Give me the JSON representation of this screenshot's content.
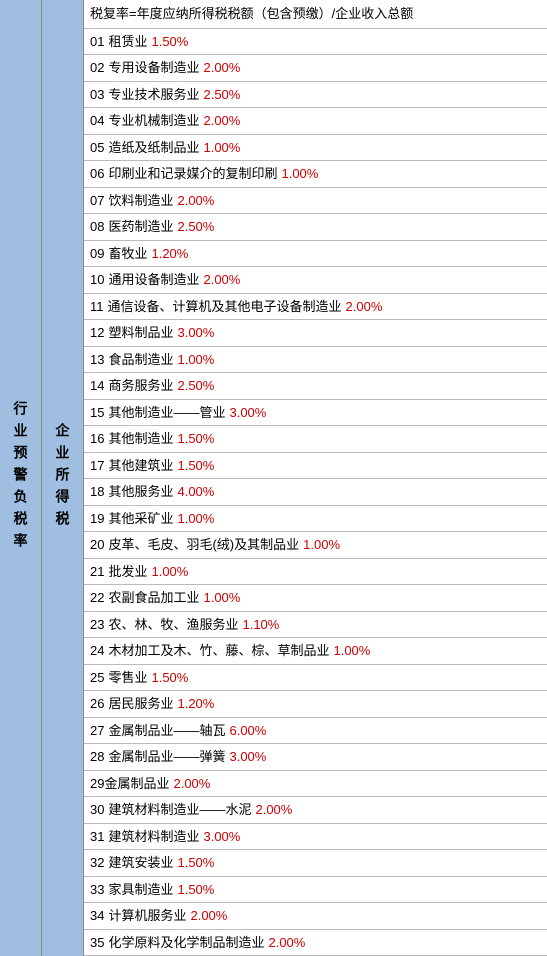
{
  "leftLabel": "行业预警负税率",
  "midLabel": "企业所得税",
  "headerText": "税复率=年度应纳所得税税额（包含预缴）/企业收入总额",
  "colors": {
    "sidebarBg": "#a0bfe0",
    "rateColor": "#d00000",
    "textColor": "#000000",
    "borderColor": "#bbbbbb"
  },
  "rows": [
    {
      "num": "01",
      "name": "租赁业",
      "rate": "1.50%"
    },
    {
      "num": "02",
      "name": "专用设备制造业",
      "rate": "2.00%"
    },
    {
      "num": "03",
      "name": "专业技术服务业",
      "rate": "2.50%"
    },
    {
      "num": "04",
      "name": "专业机械制造业",
      "rate": "2.00%"
    },
    {
      "num": "05",
      "name": "造纸及纸制品业",
      "rate": "1.00%"
    },
    {
      "num": "06",
      "name": "印刷业和记录媒介的复制印刷",
      "rate": "1.00%"
    },
    {
      "num": "07",
      "name": "饮料制造业",
      "rate": "2.00%"
    },
    {
      "num": "08",
      "name": "医药制造业",
      "rate": "2.50%"
    },
    {
      "num": "09",
      "name": "畜牧业",
      "rate": "1.20%"
    },
    {
      "num": "10",
      "name": "通用设备制造业",
      "rate": "2.00%"
    },
    {
      "num": "11",
      "name": "通信设备、计算机及其他电子设备制造业",
      "rate": "2.00%"
    },
    {
      "num": "12",
      "name": "塑料制品业",
      "rate": "3.00%"
    },
    {
      "num": "13",
      "name": "食品制造业",
      "rate": "1.00%"
    },
    {
      "num": "14",
      "name": "商务服务业",
      "rate": "2.50%"
    },
    {
      "num": "15",
      "name": "其他制造业——管业",
      "rate": "3.00%"
    },
    {
      "num": "16",
      "name": "其他制造业",
      "rate": "1.50%"
    },
    {
      "num": "17",
      "name": "其他建筑业",
      "rate": "1.50%"
    },
    {
      "num": "18",
      "name": "其他服务业",
      "rate": "4.00%"
    },
    {
      "num": "19",
      "name": "其他采矿业",
      "rate": "1.00%"
    },
    {
      "num": "20",
      "name": "皮革、毛皮、羽毛(绒)及其制品业",
      "rate": "1.00%"
    },
    {
      "num": "21",
      "name": "批发业",
      "rate": "1.00%"
    },
    {
      "num": "22",
      "name": "农副食品加工业",
      "rate": "1.00%"
    },
    {
      "num": "23",
      "name": "农、林、牧、渔服务业",
      "rate": "1.10%"
    },
    {
      "num": "24",
      "name": "木材加工及木、竹、藤、棕、草制品业",
      "rate": "1.00%"
    },
    {
      "num": "25",
      "name": "零售业",
      "rate": "1.50%"
    },
    {
      "num": "26",
      "name": "居民服务业",
      "rate": "1.20%"
    },
    {
      "num": "27",
      "name": "金属制品业——轴瓦",
      "rate": "6.00%"
    },
    {
      "num": "28",
      "name": "金属制品业——弹簧",
      "rate": "3.00%"
    },
    {
      "num": "29",
      "name": "金属制品业",
      "rate": "2.00%",
      "nospace": true
    },
    {
      "num": "30",
      "name": "建筑材料制造业——水泥",
      "rate": "2.00%"
    },
    {
      "num": "31",
      "name": "建筑材料制造业",
      "rate": "3.00%"
    },
    {
      "num": "32",
      "name": "建筑安装业",
      "rate": "1.50%"
    },
    {
      "num": "33",
      "name": "家具制造业",
      "rate": "1.50%"
    },
    {
      "num": "34",
      "name": "计算机服务业",
      "rate": "2.00%"
    },
    {
      "num": "35",
      "name": "化学原料及化学制品制造业",
      "rate": "2.00%"
    }
  ]
}
